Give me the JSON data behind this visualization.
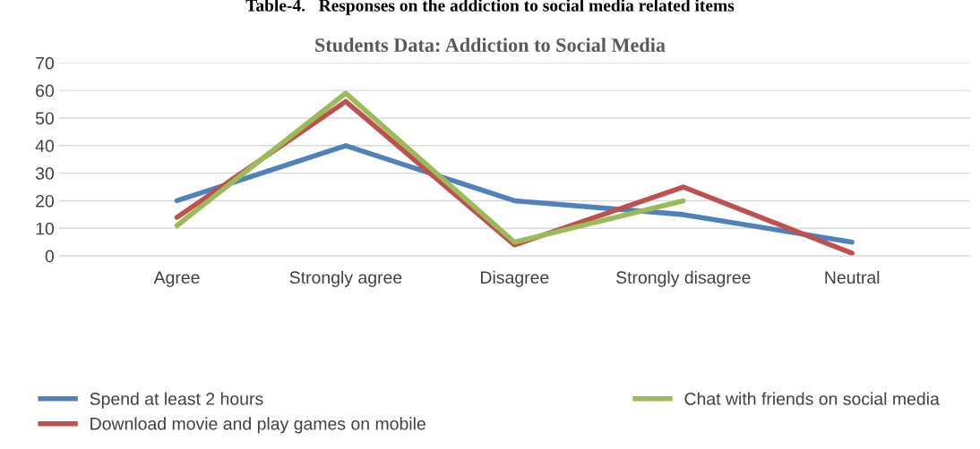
{
  "chart_data": {
    "type": "line",
    "title": "Students Data: Addiction to Social Media",
    "annotations": [
      "Table-4.   Responses on the addiction to social media related items"
    ],
    "categories": [
      "Agree",
      "Strongly agree",
      "Disagree",
      "Strongly disagree",
      "Neutral"
    ],
    "series": [
      {
        "name": "Spend at least 2 hours",
        "color": "#4f81bd",
        "values": [
          20,
          40,
          20,
          15,
          5
        ]
      },
      {
        "name": "Download movie and play games on mobile",
        "color": "#c0504d",
        "values": [
          14,
          56,
          4,
          25,
          1
        ]
      },
      {
        "name": "Chat with friends on social media",
        "color": "#9bbb59",
        "values": [
          11,
          59,
          5,
          20,
          null
        ]
      }
    ],
    "ylim": [
      0,
      70
    ],
    "yticks": [
      0,
      10,
      20,
      30,
      40,
      50,
      60,
      70
    ],
    "grid": "y",
    "legend": "bottom",
    "marker": "none",
    "line_style": "solid"
  }
}
